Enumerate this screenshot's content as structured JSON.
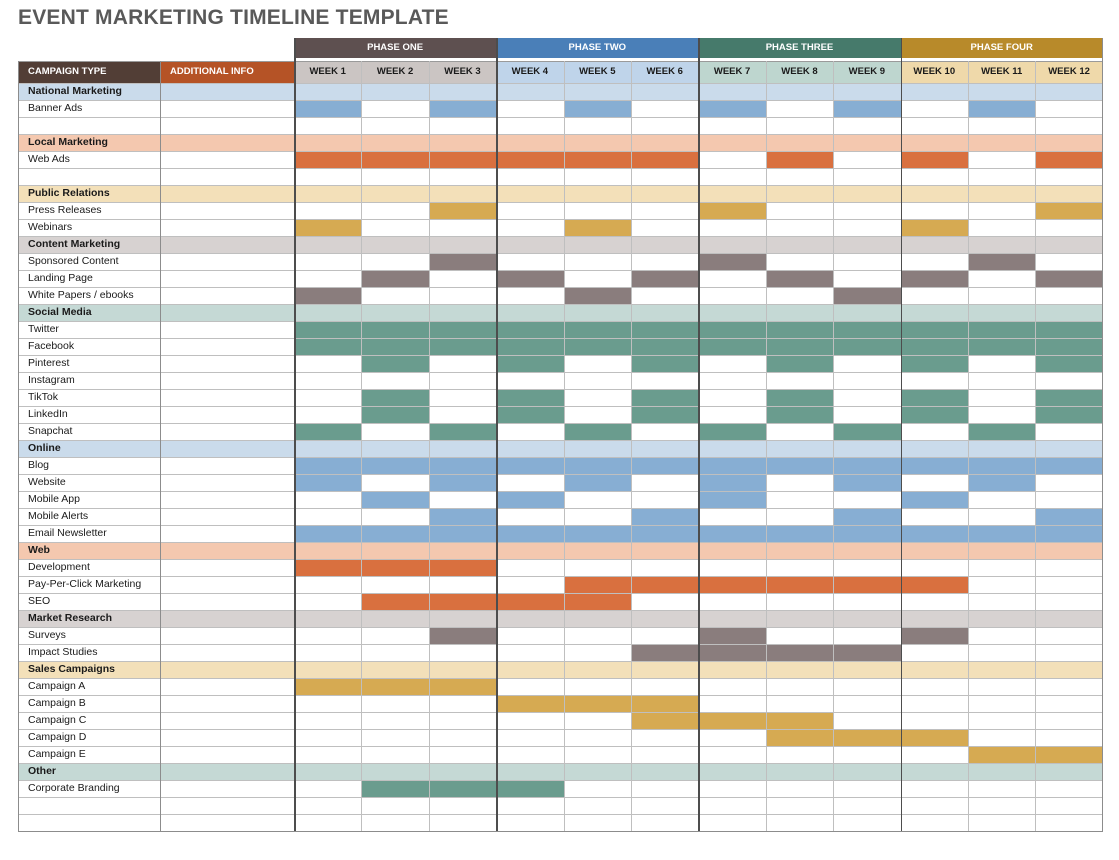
{
  "title": "EVENT MARKETING TIMELINE TEMPLATE",
  "header": {
    "campaign_type": "CAMPAIGN TYPE",
    "additional_info": "ADDITIONAL INFO",
    "phases": [
      {
        "label": "PHASE ONE",
        "color": "#5e5050"
      },
      {
        "label": "PHASE TWO",
        "color": "#4a7fb8"
      },
      {
        "label": "PHASE THREE",
        "color": "#467a6b"
      },
      {
        "label": "PHASE FOUR",
        "color": "#b88a2a"
      }
    ],
    "weeks": [
      "WEEK 1",
      "WEEK 2",
      "WEEK 3",
      "WEEK 4",
      "WEEK 5",
      "WEEK 6",
      "WEEK 7",
      "WEEK 8",
      "WEEK 9",
      "WEEK 10",
      "WEEK 11",
      "WEEK 12"
    ]
  },
  "colors": {
    "campaign_header": "#523e36",
    "info_header": "#b55326",
    "week_header": [
      "#cbc5c3",
      "#bfd4ea",
      "#bed6cf",
      "#efd9aa"
    ],
    "section_bg": {
      "blue": "#cadbeb",
      "orange": "#f4c8af",
      "yellow": "#f3e0b9",
      "gray": "#d7d2d1",
      "green": "#c5d9d5"
    },
    "fill": {
      "blue": "#87aed3",
      "orange": "#d9703f",
      "yellow": "#d6aa52",
      "gray": "#8a7d7d",
      "green": "#6a9c8e"
    }
  },
  "rows": [
    {
      "label": "National Marketing",
      "section": true,
      "color": "blue"
    },
    {
      "label": "Banner Ads",
      "color": "blue",
      "weeks": [
        1,
        3,
        5,
        7,
        9,
        11
      ]
    },
    {
      "label": "",
      "blank": true
    },
    {
      "label": "Local Marketing",
      "section": true,
      "color": "orange"
    },
    {
      "label": "Web Ads",
      "color": "orange",
      "weeks": [
        1,
        2,
        3,
        4,
        5,
        6,
        8,
        10,
        12
      ]
    },
    {
      "label": "",
      "blank": true
    },
    {
      "label": "Public Relations",
      "section": true,
      "color": "yellow"
    },
    {
      "label": "Press Releases",
      "color": "yellow",
      "weeks": [
        3,
        7,
        12
      ]
    },
    {
      "label": "Webinars",
      "color": "yellow",
      "weeks": [
        1,
        5,
        10
      ]
    },
    {
      "label": "Content Marketing",
      "section": true,
      "color": "gray"
    },
    {
      "label": "Sponsored Content",
      "color": "gray",
      "weeks": [
        3,
        7,
        11
      ]
    },
    {
      "label": "Landing Page",
      "color": "gray",
      "weeks": [
        2,
        4,
        6,
        8,
        10,
        12
      ]
    },
    {
      "label": "White Papers / ebooks",
      "color": "gray",
      "weeks": [
        1,
        5,
        9
      ]
    },
    {
      "label": "Social Media",
      "section": true,
      "color": "green"
    },
    {
      "label": "Twitter",
      "color": "green",
      "weeks": [
        1,
        2,
        3,
        4,
        5,
        6,
        7,
        8,
        9,
        10,
        11,
        12
      ]
    },
    {
      "label": "Facebook",
      "color": "green",
      "weeks": [
        1,
        2,
        3,
        4,
        5,
        6,
        7,
        8,
        9,
        10,
        11,
        12
      ]
    },
    {
      "label": "Pinterest",
      "color": "green",
      "weeks": [
        2,
        4,
        6,
        8,
        10,
        12
      ]
    },
    {
      "label": "Instagram",
      "color": "green",
      "weeks": []
    },
    {
      "label": "TikTok",
      "color": "green",
      "weeks": [
        2,
        4,
        6,
        8,
        10,
        12
      ]
    },
    {
      "label": "LinkedIn",
      "color": "green",
      "weeks": [
        2,
        4,
        6,
        8,
        10,
        12
      ]
    },
    {
      "label": "Snapchat",
      "color": "green",
      "weeks": [
        1,
        3,
        5,
        7,
        9,
        11
      ]
    },
    {
      "label": "Online",
      "section": true,
      "color": "blue"
    },
    {
      "label": "Blog",
      "color": "blue",
      "weeks": [
        1,
        2,
        3,
        4,
        5,
        6,
        7,
        8,
        9,
        10,
        11,
        12
      ]
    },
    {
      "label": "Website",
      "color": "blue",
      "weeks": [
        1,
        3,
        5,
        7,
        9,
        11
      ]
    },
    {
      "label": "Mobile App",
      "color": "blue",
      "weeks": [
        2,
        4,
        7,
        10
      ]
    },
    {
      "label": "Mobile Alerts",
      "color": "blue",
      "weeks": [
        3,
        6,
        9,
        12
      ]
    },
    {
      "label": "Email Newsletter",
      "color": "blue",
      "weeks": [
        1,
        2,
        3,
        4,
        5,
        6,
        7,
        8,
        9,
        10,
        11,
        12
      ]
    },
    {
      "label": "Web",
      "section": true,
      "color": "orange"
    },
    {
      "label": "Development",
      "color": "orange",
      "weeks": [
        1,
        2,
        3
      ]
    },
    {
      "label": "Pay-Per-Click Marketing",
      "color": "orange",
      "weeks": [
        5,
        6,
        7,
        8,
        9,
        10
      ]
    },
    {
      "label": "SEO",
      "color": "orange",
      "weeks": [
        2,
        3,
        4,
        5
      ]
    },
    {
      "label": "Market Research",
      "section": true,
      "color": "gray"
    },
    {
      "label": "Surveys",
      "color": "gray",
      "weeks": [
        3,
        7,
        10
      ]
    },
    {
      "label": "Impact Studies",
      "color": "gray",
      "weeks": [
        6,
        7,
        8,
        9
      ]
    },
    {
      "label": "Sales Campaigns",
      "section": true,
      "color": "yellow"
    },
    {
      "label": "Campaign A",
      "color": "yellow",
      "weeks": [
        1,
        2,
        3
      ]
    },
    {
      "label": "Campaign B",
      "color": "yellow",
      "weeks": [
        4,
        5,
        6
      ]
    },
    {
      "label": "Campaign C",
      "color": "yellow",
      "weeks": [
        6,
        7,
        8
      ]
    },
    {
      "label": "Campaign D",
      "color": "yellow",
      "weeks": [
        8,
        9,
        10
      ]
    },
    {
      "label": "Campaign E",
      "color": "yellow",
      "weeks": [
        11,
        12
      ]
    },
    {
      "label": "Other",
      "section": true,
      "color": "green"
    },
    {
      "label": "Corporate Branding",
      "color": "green",
      "weeks": [
        2,
        3,
        4
      ]
    },
    {
      "label": "",
      "blank": true
    },
    {
      "label": "",
      "blank": true
    }
  ]
}
